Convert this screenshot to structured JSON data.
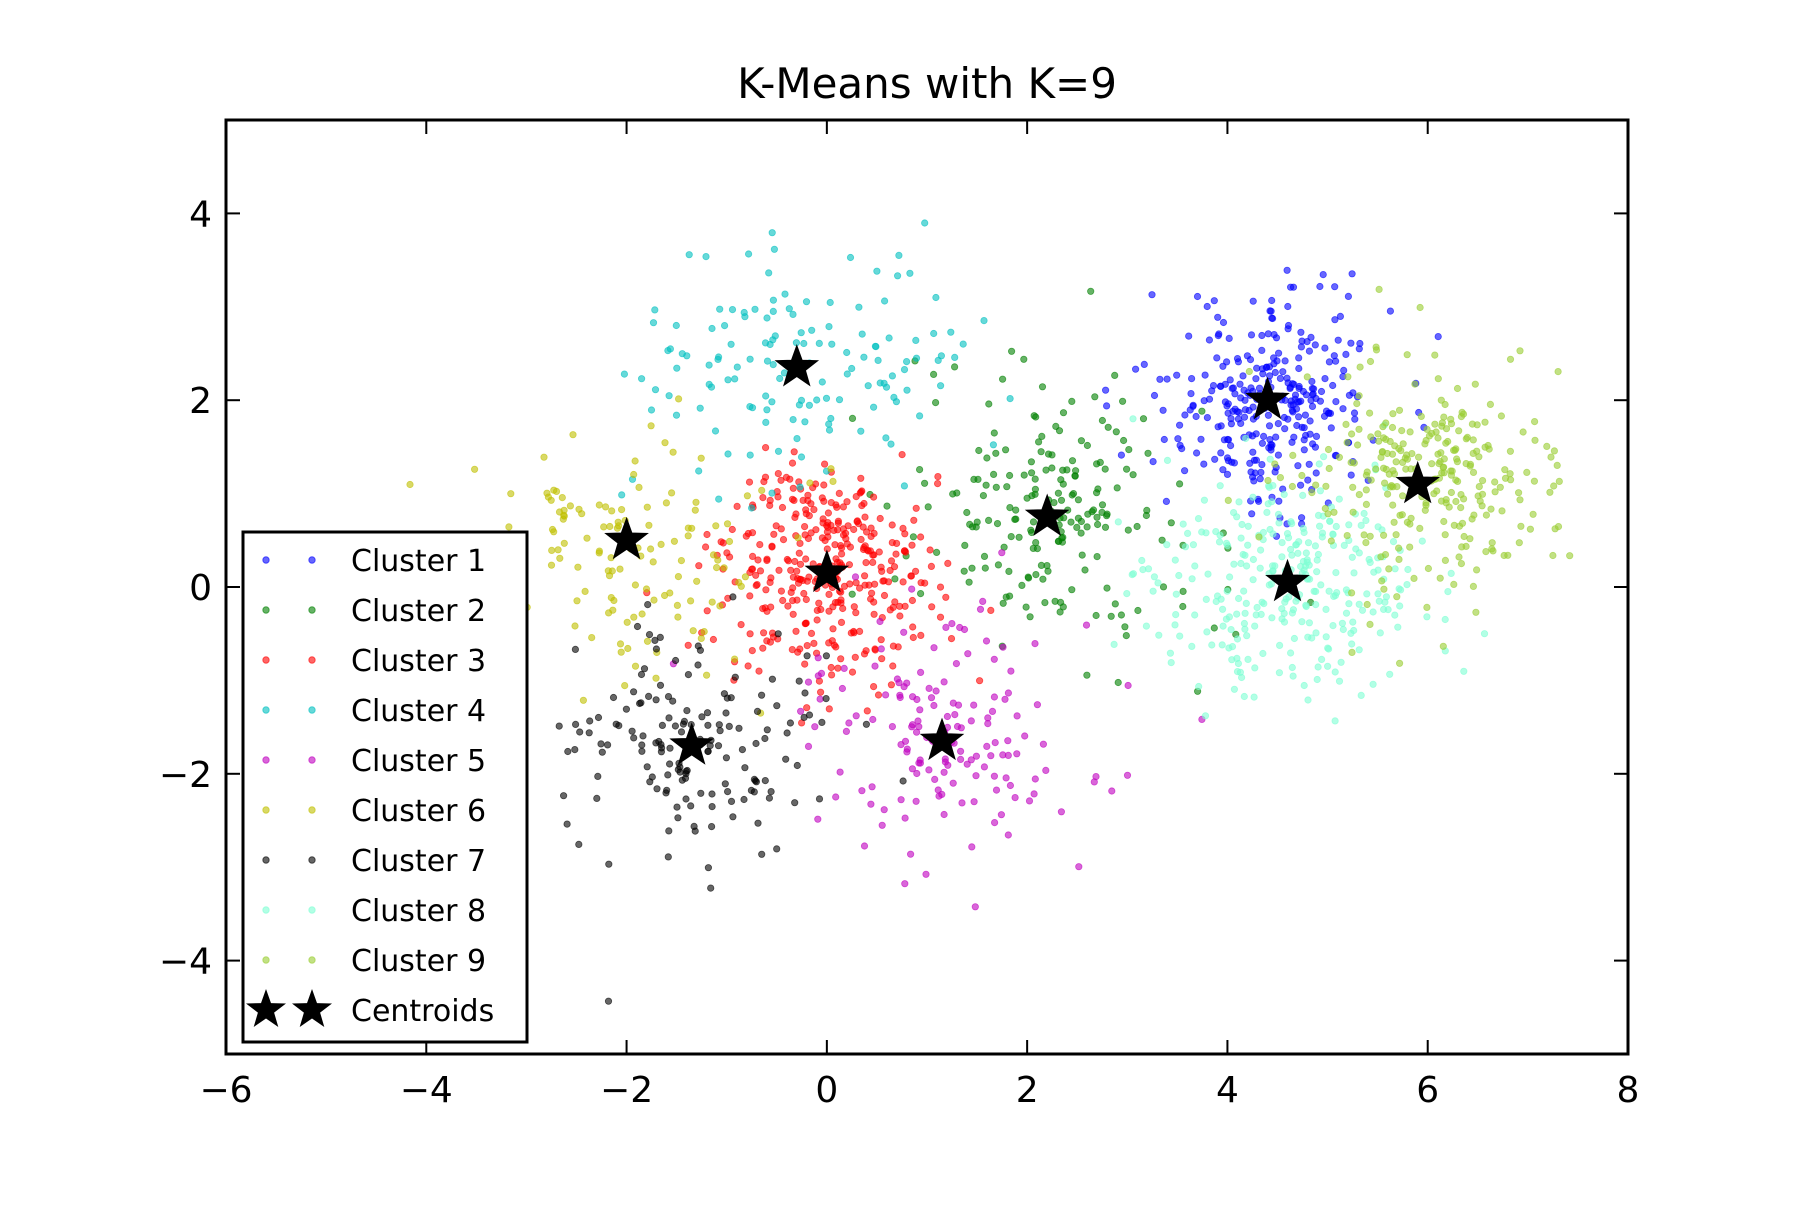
{
  "chart_data": {
    "type": "scatter",
    "title": "K-Means with K=9",
    "xlabel": "",
    "ylabel": "",
    "xlim": [
      -6,
      8
    ],
    "ylim": [
      -5,
      5
    ],
    "x_ticks": [
      -6,
      -4,
      -2,
      0,
      2,
      4,
      6,
      8
    ],
    "x_tick_labels": [
      "−6",
      "−4",
      "−2",
      "0",
      "2",
      "4",
      "6",
      "8"
    ],
    "y_ticks": [
      -4,
      -2,
      0,
      2,
      4
    ],
    "y_tick_labels": [
      "−4",
      "−2",
      "0",
      "2",
      "4"
    ],
    "grid": false,
    "legend_position": "center-left",
    "series": [
      {
        "name": "Cluster 1",
        "color": "#0000ff",
        "center": [
          4.4,
          2.0
        ],
        "spread": [
          0.55,
          0.55
        ],
        "count": 300
      },
      {
        "name": "Cluster 2",
        "color": "#008000",
        "center": [
          2.2,
          0.75
        ],
        "spread": [
          0.75,
          0.75
        ],
        "count": 200
      },
      {
        "name": "Cluster 3",
        "color": "#ff0000",
        "center": [
          0.0,
          0.15
        ],
        "spread": [
          0.55,
          0.55
        ],
        "count": 350
      },
      {
        "name": "Cluster 4",
        "color": "#00bfbf",
        "center": [
          -0.3,
          2.35
        ],
        "spread": [
          0.9,
          0.65
        ],
        "count": 140
      },
      {
        "name": "Cluster 5",
        "color": "#bf00bf",
        "center": [
          1.15,
          -1.65
        ],
        "spread": [
          0.7,
          0.7
        ],
        "count": 160
      },
      {
        "name": "Cluster 6",
        "color": "#bfbf00",
        "center": [
          -2.0,
          0.5
        ],
        "spread": [
          0.75,
          0.65
        ],
        "count": 130
      },
      {
        "name": "Cluster 7",
        "color": "#000000",
        "center": [
          -1.35,
          -1.7
        ],
        "spread": [
          0.65,
          0.65
        ],
        "count": 160
      },
      {
        "name": "Cluster 8",
        "color": "#7fffd4",
        "center": [
          4.6,
          0.05
        ],
        "spread": [
          0.75,
          0.6
        ],
        "count": 300
      },
      {
        "name": "Cluster 9",
        "color": "#9acd32",
        "center": [
          5.9,
          1.1
        ],
        "spread": [
          0.65,
          0.65
        ],
        "count": 280
      }
    ],
    "centroids": {
      "name": "Centroids",
      "color": "#000000",
      "points": [
        [
          4.4,
          2.0
        ],
        [
          2.2,
          0.75
        ],
        [
          0.0,
          0.15
        ],
        [
          -0.3,
          2.35
        ],
        [
          1.15,
          -1.65
        ],
        [
          -2.0,
          0.5
        ],
        [
          -1.35,
          -1.7
        ],
        [
          4.6,
          0.05
        ],
        [
          5.9,
          1.1
        ]
      ]
    }
  }
}
